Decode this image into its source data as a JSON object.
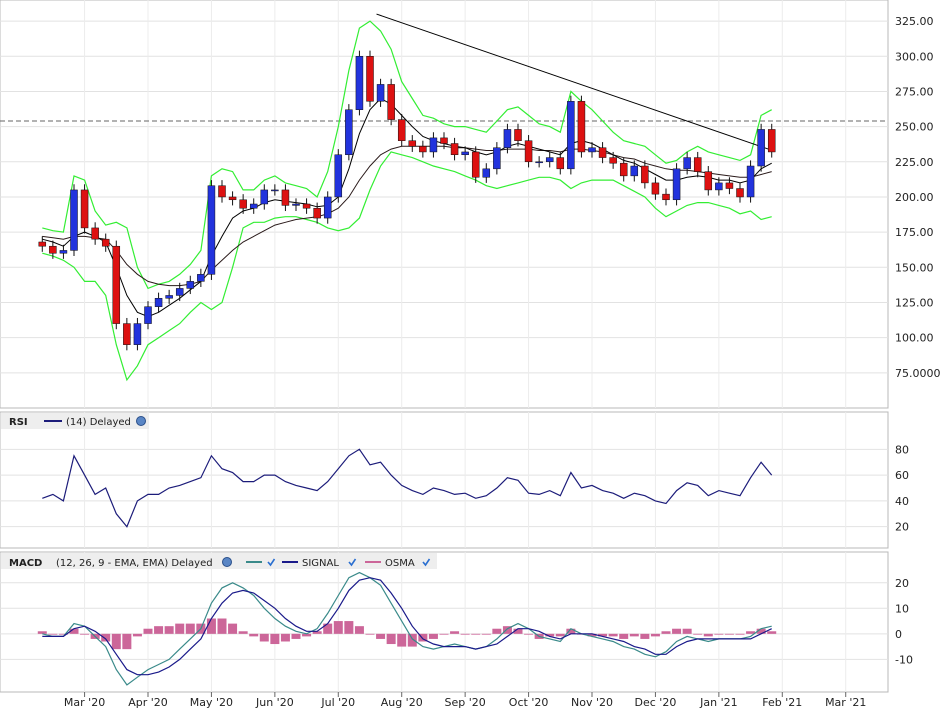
{
  "chart_data": [
    {
      "type": "candlestick",
      "ylim": [
        50,
        340
      ],
      "yticks": [
        75,
        100,
        125,
        150,
        175,
        200,
        225,
        250,
        275,
        300,
        325
      ],
      "ytick_labels": [
        "75.0000",
        "100.00",
        "125.00",
        "150.00",
        "175.00",
        "200.00",
        "225.00",
        "250.00",
        "275.00",
        "300.00",
        "325.00"
      ],
      "reference_line": 254,
      "trendline": [
        [
          0.424,
          330
        ],
        [
          0.87,
          233
        ]
      ],
      "series": [
        {
          "role": "close",
          "color": "#000000",
          "values": [
            165,
            160,
            162,
            205,
            178,
            170,
            165,
            110,
            95,
            110,
            122,
            128,
            130,
            135,
            140,
            145,
            208,
            200,
            198,
            192,
            195,
            205,
            205,
            194,
            195,
            192,
            185,
            200,
            230,
            262,
            300,
            268,
            280,
            255,
            240,
            236,
            232,
            242,
            238,
            230,
            232,
            214,
            220,
            235,
            248,
            240,
            225,
            225,
            228,
            220,
            268,
            232,
            235,
            228,
            224,
            215,
            222,
            210,
            202,
            198,
            220,
            228,
            218,
            205,
            210,
            206,
            200,
            222,
            248,
            232
          ]
        },
        {
          "role": "sma20",
          "color": "#000000",
          "values": [
            170,
            168,
            165,
            172,
            175,
            172,
            168,
            150,
            130,
            118,
            115,
            118,
            123,
            128,
            134,
            140,
            158,
            172,
            185,
            190,
            192,
            196,
            198,
            197,
            196,
            195,
            193,
            194,
            200,
            220,
            245,
            262,
            270,
            266,
            258,
            250,
            243,
            240,
            238,
            236,
            235,
            232,
            230,
            232,
            236,
            238,
            236,
            234,
            232,
            230,
            238,
            240,
            238,
            234,
            230,
            226,
            224,
            220,
            216,
            212,
            212,
            214,
            215,
            214,
            212,
            212,
            210,
            212,
            220,
            224
          ]
        },
        {
          "role": "ema50",
          "color": "#2a1a1a",
          "values": [
            172,
            171,
            170,
            172,
            172,
            171,
            170,
            162,
            152,
            145,
            140,
            138,
            137,
            137,
            138,
            140,
            148,
            155,
            162,
            168,
            172,
            176,
            180,
            182,
            184,
            185,
            186,
            188,
            192,
            200,
            212,
            222,
            230,
            234,
            236,
            236,
            236,
            236,
            236,
            235,
            235,
            234,
            233,
            233,
            234,
            234,
            234,
            233,
            233,
            232,
            234,
            234,
            233,
            232,
            230,
            228,
            227,
            224,
            222,
            220,
            219,
            219,
            218,
            217,
            216,
            215,
            214,
            214,
            216,
            218
          ]
        },
        {
          "role": "bb_upper",
          "color": "#33ee33",
          "values": [
            178,
            176,
            175,
            215,
            212,
            190,
            180,
            182,
            178,
            150,
            135,
            138,
            140,
            145,
            152,
            162,
            215,
            220,
            218,
            205,
            205,
            212,
            215,
            210,
            208,
            206,
            200,
            218,
            250,
            290,
            320,
            325,
            318,
            305,
            282,
            270,
            258,
            256,
            252,
            250,
            250,
            248,
            246,
            254,
            262,
            264,
            258,
            252,
            250,
            246,
            275,
            268,
            262,
            254,
            246,
            240,
            238,
            236,
            230,
            224,
            226,
            232,
            236,
            232,
            230,
            228,
            226,
            230,
            258,
            262
          ]
        },
        {
          "role": "bb_lower",
          "color": "#33ee33",
          "values": [
            160,
            158,
            155,
            150,
            140,
            140,
            130,
            95,
            70,
            80,
            95,
            100,
            105,
            110,
            118,
            125,
            120,
            125,
            150,
            178,
            182,
            182,
            185,
            186,
            186,
            184,
            182,
            178,
            176,
            178,
            185,
            205,
            222,
            232,
            230,
            228,
            225,
            222,
            220,
            218,
            215,
            212,
            208,
            206,
            208,
            210,
            212,
            214,
            214,
            212,
            206,
            210,
            212,
            212,
            212,
            208,
            204,
            200,
            192,
            186,
            190,
            194,
            196,
            196,
            194,
            192,
            188,
            190,
            184,
            186
          ]
        }
      ]
    },
    {
      "type": "line",
      "title": "RSI",
      "params": "(14) Delayed",
      "ylim": [
        5,
        95
      ],
      "yticks": [
        20,
        40,
        60,
        80
      ],
      "series": [
        {
          "name": "RSI",
          "color": "#1c1c7a",
          "values": [
            42,
            45,
            40,
            75,
            60,
            45,
            50,
            30,
            20,
            40,
            45,
            45,
            50,
            52,
            55,
            58,
            75,
            65,
            62,
            55,
            55,
            60,
            60,
            55,
            52,
            50,
            48,
            55,
            65,
            75,
            80,
            68,
            70,
            60,
            52,
            48,
            45,
            50,
            48,
            45,
            46,
            42,
            44,
            50,
            58,
            56,
            46,
            45,
            48,
            44,
            62,
            50,
            52,
            48,
            46,
            42,
            46,
            44,
            40,
            38,
            48,
            54,
            52,
            44,
            48,
            46,
            44,
            58,
            70,
            60
          ]
        }
      ]
    },
    {
      "type": "line+bar",
      "title": "MACD",
      "params": "(12, 26, 9 - EMA, EMA) Delayed",
      "ylim": [
        -22,
        25
      ],
      "yticks": [
        -10,
        0,
        10,
        20
      ],
      "series": [
        {
          "name": "MACD",
          "color": "#3a8a8a",
          "values": [
            0,
            -1,
            -1,
            4,
            3,
            -1,
            -5,
            -14,
            -20,
            -17,
            -14,
            -12,
            -10,
            -6,
            -2,
            2,
            12,
            18,
            20,
            18,
            15,
            10,
            6,
            3,
            1,
            0,
            2,
            8,
            15,
            22,
            24,
            22,
            19,
            12,
            5,
            -2,
            -5,
            -6,
            -5,
            -4,
            -5,
            -6,
            -5,
            -2,
            2,
            4,
            2,
            -1,
            -2,
            -3,
            2,
            0,
            -1,
            -2,
            -3,
            -5,
            -6,
            -8,
            -9,
            -7,
            -3,
            -1,
            -2,
            -3,
            -2,
            -2,
            -2,
            -1,
            2,
            3
          ]
        },
        {
          "name": "SIGNAL",
          "color": "#1a1a8a",
          "values": [
            -1,
            -1,
            -1,
            2,
            3,
            1,
            -2,
            -8,
            -14,
            -16,
            -16,
            -15,
            -13,
            -10,
            -6,
            -2,
            6,
            12,
            16,
            17,
            16,
            13,
            10,
            6,
            3,
            1,
            1,
            4,
            10,
            17,
            21,
            22,
            21,
            16,
            10,
            3,
            -2,
            -4,
            -5,
            -5,
            -5,
            -6,
            -5,
            -4,
            -1,
            2,
            2,
            1,
            -1,
            -2,
            0,
            0,
            0,
            -1,
            -2,
            -3,
            -5,
            -6,
            -8,
            -8,
            -5,
            -3,
            -2,
            -2,
            -2,
            -2,
            -2,
            -2,
            0,
            2
          ]
        },
        {
          "name": "OSMA",
          "color": "#cc6699",
          "values": [
            1,
            0,
            0,
            2,
            0,
            -2,
            -3,
            -6,
            -6,
            -1,
            2,
            3,
            3,
            4,
            4,
            4,
            6,
            6,
            4,
            1,
            -1,
            -3,
            -4,
            -3,
            -2,
            -1,
            1,
            4,
            5,
            5,
            3,
            0,
            -2,
            -4,
            -5,
            -5,
            -3,
            -2,
            0,
            1,
            0,
            0,
            0,
            2,
            3,
            2,
            0,
            -2,
            -1,
            -1,
            2,
            0,
            -1,
            -1,
            -1,
            -2,
            -1,
            -2,
            -1,
            1,
            2,
            2,
            0,
            -1,
            0,
            0,
            0,
            1,
            2,
            1
          ]
        }
      ]
    }
  ],
  "x_axis": {
    "months": [
      "Mar '20",
      "Apr '20",
      "May '20",
      "Jun '20",
      "Jul '20",
      "Aug '20",
      "Sep '20",
      "Oct '20",
      "Nov '20",
      "Dec '20",
      "Jan '21",
      "Feb '21",
      "Mar '21"
    ],
    "month_index": [
      4,
      10,
      16,
      22,
      28,
      34,
      40,
      46,
      52,
      58,
      64,
      70,
      76
    ],
    "n_points": 70,
    "x_range": [
      -4,
      80
    ]
  }
}
